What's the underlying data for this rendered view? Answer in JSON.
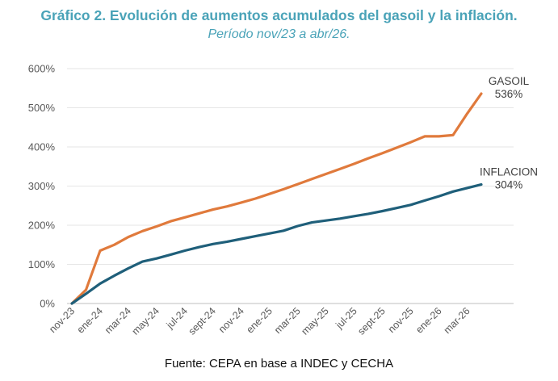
{
  "header": {
    "title": "Gráfico 2. Evolución de aumentos acumulados del gasoil y la inflación.",
    "subtitle": "Período nov/23 a abr/26."
  },
  "footer": {
    "source": "Fuente: CEPA en base a INDEC y CECHA"
  },
  "chart_data": {
    "type": "line",
    "title": "Gráfico 2. Evolución de aumentos acumulados del gasoil y la inflación.",
    "subtitle": "Período nov/23 a abr/26.",
    "xlabel": "",
    "ylabel": "",
    "ylim": [
      0,
      600
    ],
    "y_unit": "%",
    "y_ticks": [
      0,
      100,
      200,
      300,
      400,
      500,
      600
    ],
    "y_tick_labels": [
      "0%",
      "100%",
      "200%",
      "300%",
      "400%",
      "500%",
      "600%"
    ],
    "grid": true,
    "x": [
      "nov-23",
      "dic-23",
      "ene-24",
      "feb-24",
      "mar-24",
      "abr-24",
      "may-24",
      "jun-24",
      "jul-24",
      "ago-24",
      "sept-24",
      "oct-24",
      "nov-24",
      "dic-24",
      "ene-25",
      "feb-25",
      "mar-25",
      "abr-25",
      "may-25",
      "jun-25",
      "jul-25",
      "ago-25",
      "sept-25",
      "oct-25",
      "nov-25",
      "dic-25",
      "ene-26",
      "feb-26",
      "mar-26",
      "abr-26"
    ],
    "x_tick_labels": [
      "nov-23",
      "ene-24",
      "mar-24",
      "may-24",
      "jul-24",
      "sept-24",
      "nov-24",
      "ene-25",
      "mar-25",
      "may-25",
      "jul-25",
      "sept-25",
      "nov-25",
      "ene-26",
      "mar-26"
    ],
    "series": [
      {
        "name": "GASOIL",
        "end_label": "536%",
        "color": "#e07a3c",
        "values": [
          0,
          35,
          135,
          150,
          170,
          185,
          197,
          210,
          220,
          230,
          240,
          248,
          258,
          268,
          280,
          292,
          305,
          318,
          331,
          344,
          357,
          371,
          384,
          398,
          412,
          427,
          427,
          430,
          485,
          536
        ]
      },
      {
        "name": "INFLACION",
        "end_label": "304%",
        "color": "#1f5f7a",
        "values": [
          0,
          25,
          51,
          71,
          90,
          107,
          115,
          125,
          135,
          144,
          152,
          158,
          165,
          172,
          179,
          186,
          198,
          207,
          212,
          217,
          223,
          229,
          236,
          244,
          252,
          263,
          274,
          286,
          295,
          304
        ]
      }
    ]
  }
}
